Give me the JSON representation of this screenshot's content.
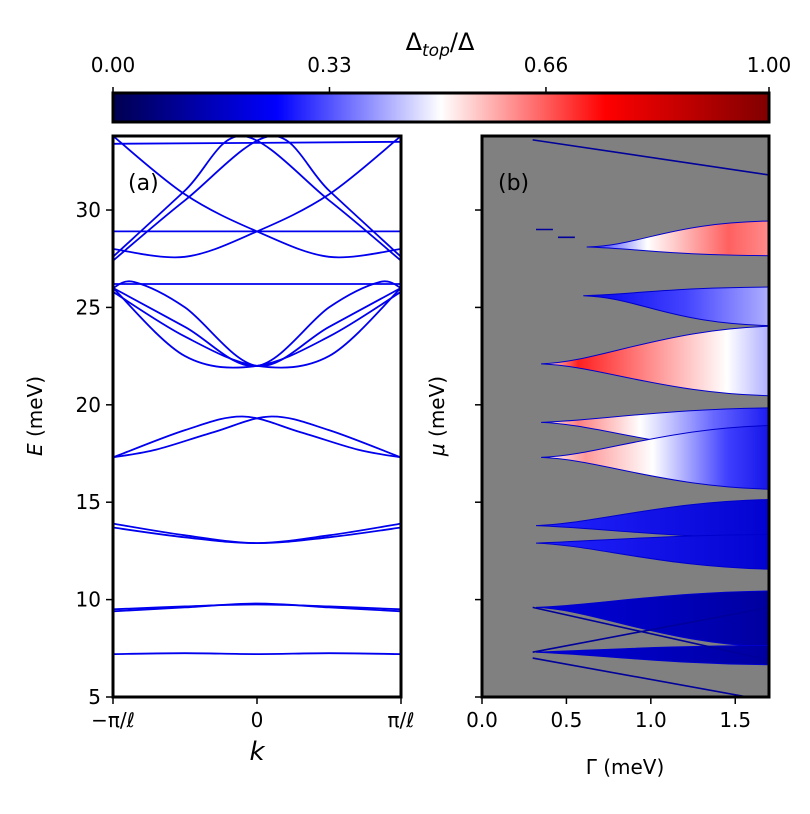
{
  "colorbar": {
    "label_main": "Δ",
    "label_sub": "top",
    "label_tail": "/Δ",
    "ticks": [
      "0.00",
      "0.33",
      "0.66",
      "1.00"
    ],
    "tick_values": [
      0,
      0.33,
      0.66,
      1.0
    ],
    "colors": [
      "#000050",
      "#0000ff",
      "#ffffff",
      "#ff0000",
      "#800000"
    ]
  },
  "chart_data": [
    {
      "panel": "(a)",
      "type": "line",
      "title": "",
      "xlabel": "k",
      "ylabel_italic": "E",
      "ylabel_rest": " (meV)",
      "xticks": [
        "−π/ℓ",
        "0",
        "π/ℓ"
      ],
      "xtick_values": [
        -1,
        0,
        1
      ],
      "yticks": [
        "5",
        "10",
        "15",
        "20",
        "25",
        "30"
      ],
      "ytick_values": [
        5,
        10,
        15,
        20,
        25,
        30
      ],
      "xlim": [
        -1,
        1
      ],
      "ylim": [
        5,
        33.8
      ],
      "line_color": "#0000ee",
      "bands": [
        {
          "x": [
            -1,
            -0.5,
            0,
            0.5,
            1
          ],
          "y": [
            7.2,
            7.25,
            7.2,
            7.25,
            7.2
          ]
        },
        {
          "x": [
            -1,
            -0.5,
            0,
            0.5,
            1
          ],
          "y": [
            9.4,
            9.6,
            9.8,
            9.6,
            9.4
          ]
        },
        {
          "x": [
            -1,
            -0.5,
            0,
            0.5,
            1
          ],
          "y": [
            9.5,
            9.65,
            9.75,
            9.65,
            9.5
          ]
        },
        {
          "x": [
            -1,
            -0.5,
            0,
            0.5,
            1
          ],
          "y": [
            13.7,
            13.2,
            12.9,
            13.3,
            13.9
          ]
        },
        {
          "x": [
            -1,
            -0.5,
            0,
            0.5,
            1
          ],
          "y": [
            13.9,
            13.3,
            12.9,
            13.2,
            13.7
          ]
        },
        {
          "x": [
            -1,
            -0.5,
            -0.1,
            0.3,
            0.7,
            1
          ],
          "y": [
            17.3,
            18.7,
            19.4,
            18.6,
            17.7,
            17.3
          ]
        },
        {
          "x": [
            -1,
            -0.7,
            -0.3,
            0.1,
            0.5,
            1
          ],
          "y": [
            17.3,
            17.7,
            18.6,
            19.4,
            18.7,
            17.3
          ]
        },
        {
          "x": [
            -1,
            -0.5,
            0,
            0.5,
            1
          ],
          "y": [
            25.8,
            23.5,
            22.0,
            22.5,
            26.0
          ]
        },
        {
          "x": [
            -1,
            -0.5,
            0,
            0.5,
            1
          ],
          "y": [
            26.0,
            22.5,
            22.0,
            23.5,
            25.8
          ]
        },
        {
          "x": [
            -1,
            1
          ],
          "y": [
            26.2,
            26.2
          ]
        },
        {
          "x": [
            -1,
            -0.85,
            -0.5,
            0,
            0.5,
            1
          ],
          "y": [
            26.0,
            26.3,
            25.0,
            22.0,
            24.0,
            26.0
          ]
        },
        {
          "x": [
            -1,
            -0.5,
            0,
            0.5,
            0.85,
            1
          ],
          "y": [
            26.0,
            24.0,
            22.0,
            25.0,
            26.3,
            26.0
          ]
        },
        {
          "x": [
            -1,
            1
          ],
          "y": [
            28.9,
            28.9
          ]
        },
        {
          "x": [
            -1,
            -0.5,
            -0.1,
            0.5,
            1
          ],
          "y": [
            27.6,
            31.0,
            33.8,
            30.5,
            27.4
          ]
        },
        {
          "x": [
            -1,
            -0.5,
            0.1,
            0.5,
            1
          ],
          "y": [
            27.4,
            30.5,
            33.8,
            31.0,
            27.6
          ]
        },
        {
          "x": [
            -1,
            -0.5,
            0,
            0.5,
            1
          ],
          "y": [
            28.0,
            27.6,
            28.9,
            30.8,
            33.8
          ]
        },
        {
          "x": [
            -1,
            -0.5,
            0,
            0.5,
            1
          ],
          "y": [
            33.8,
            30.8,
            28.9,
            27.6,
            28.0
          ]
        },
        {
          "x": [
            -1,
            1
          ],
          "y": [
            33.4,
            33.5
          ]
        }
      ]
    },
    {
      "panel": "(b)",
      "type": "heatmap",
      "title": "",
      "xlabel": "Γ (meV)",
      "ylabel_italic": "μ",
      "ylabel_rest": " (meV)",
      "xticks": [
        "0.0",
        "0.5",
        "1.0",
        "1.5"
      ],
      "xtick_values": [
        0,
        0.5,
        1.0,
        1.5
      ],
      "ytick_values": [
        5,
        10,
        15,
        20,
        25,
        30
      ],
      "xlim": [
        0,
        1.7
      ],
      "ylim": [
        5,
        33.8
      ],
      "background": "#808080",
      "lobes": [
        {
          "g0": 0.62,
          "mu0": 28.1,
          "dUp": 1.0,
          "dDown": 0.1,
          "value": 0.55,
          "inner": 0.85,
          "fill": "lg-a"
        },
        {
          "g0": 0.6,
          "mu0": 25.6,
          "dUp": 0.1,
          "dDown": 1.2,
          "value": 0.2,
          "inner": 0.5,
          "fill": "lg-b"
        },
        {
          "g0": 0.35,
          "mu0": 22.1,
          "dUp": 1.6,
          "dDown": 1.3,
          "value": 0.85,
          "inner": 0.4,
          "fill": "lg-c"
        },
        {
          "g0": 0.35,
          "mu0": 19.1,
          "dUp": 0.4,
          "dDown": 1.2,
          "value": 0.7,
          "inner": 0.3,
          "fill": "lg-d"
        },
        {
          "g0": 0.35,
          "mu0": 17.3,
          "dUp": 1.3,
          "dDown": 1.3,
          "value": 0.75,
          "inner": 0.3,
          "fill": "lg-e"
        },
        {
          "g0": 0.32,
          "mu0": 13.8,
          "dUp": 1.0,
          "dDown": 0.3,
          "value": 0.2,
          "inner": 0.2,
          "fill": "lg-f"
        },
        {
          "g0": 0.32,
          "mu0": 12.9,
          "dUp": 0.1,
          "dDown": 1.0,
          "value": 0.2,
          "inner": 0.2,
          "fill": "lg-f"
        },
        {
          "g0": 0.32,
          "mu0": 9.6,
          "dUp": 0.5,
          "dDown": 1.7,
          "value": 0.1,
          "inner": 0.1,
          "fill": "lg-g"
        },
        {
          "g0": 0.32,
          "mu0": 7.3,
          "dUp": 0.0,
          "dDown": 0.3,
          "value": 0.1,
          "inner": 0.1,
          "fill": "lg-g"
        }
      ],
      "lines": [
        {
          "x": [
            0.3,
            1.7
          ],
          "y": [
            9.6,
            6.9
          ]
        },
        {
          "x": [
            0.3,
            1.7
          ],
          "y": [
            7.3,
            9.6
          ]
        },
        {
          "x": [
            0.3,
            1.7
          ],
          "y": [
            7.0,
            4.8
          ]
        },
        {
          "x": [
            0.3,
            1.7
          ],
          "y": [
            33.6,
            31.8
          ]
        },
        {
          "x": [
            0.32,
            0.42
          ],
          "y": [
            29.0,
            29.0
          ]
        },
        {
          "x": [
            0.45,
            0.55
          ],
          "y": [
            28.6,
            28.6
          ]
        }
      ]
    }
  ]
}
